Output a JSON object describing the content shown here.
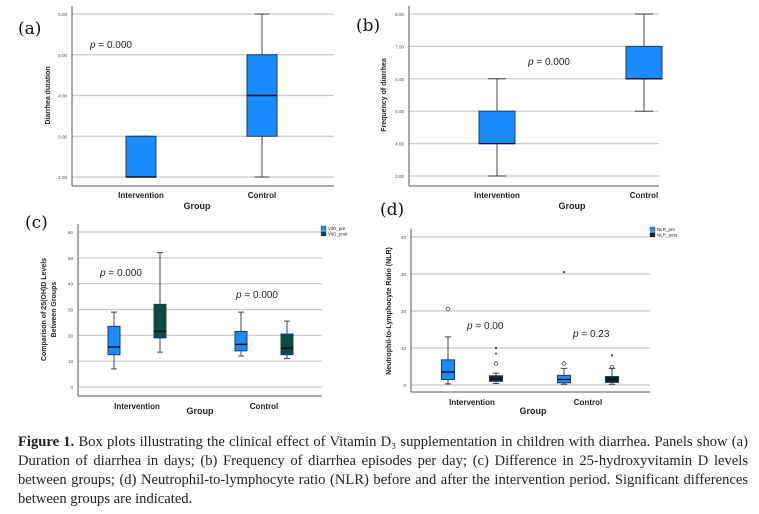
{
  "panels": [
    "(a)",
    "(b)",
    "(c)",
    "(d)"
  ],
  "caption": {
    "label": "Figure 1.",
    "text": "Box plots illustrating the clinical effect of Vitamin D₃ supplementation in children with diarrhea. Panels show (a) Duration of diarrhea in days; (b) Frequency of diarrhea episodes per day; (c) Difference in 25-hydroxyvitamin D levels between groups; (d) Neutrophil-to-lymphocyte ratio (NLR) before and after the intervention period. Significant differences between groups are indicated."
  },
  "chart_data": [
    {
      "type": "box",
      "panel": "(a)",
      "title": "",
      "xlabel": "Group",
      "ylabel": "Diarrhea duration",
      "categories": [
        "Intervention",
        "Control"
      ],
      "yticks": [
        "2.00",
        "3.00",
        "4.00",
        "5.00",
        "6.00"
      ],
      "ylim": [
        2,
        6
      ],
      "grid": true,
      "annotations": [
        {
          "text": "p = 0.000",
          "position": "top-left"
        }
      ],
      "series": [
        {
          "name": "",
          "color": "#1a8cff",
          "boxes": [
            {
              "min": 2,
              "q1": 2,
              "median": 2,
              "q3": 3,
              "max": 3
            },
            {
              "min": 2,
              "q1": 3,
              "median": 4,
              "q3": 5,
              "max": 6
            }
          ]
        }
      ]
    },
    {
      "type": "box",
      "panel": "(b)",
      "title": "",
      "xlabel": "Group",
      "ylabel": "Frequency of diarrhea",
      "categories": [
        "Intervention",
        "Control"
      ],
      "yticks": [
        "3.00",
        "4.00",
        "5.00",
        "6.00",
        "7.00",
        "8.00"
      ],
      "ylim": [
        3,
        8
      ],
      "grid": true,
      "annotations": [
        {
          "text": "p = 0.000",
          "position": "top-center"
        }
      ],
      "series": [
        {
          "name": "",
          "color": "#1a8cff",
          "boxes": [
            {
              "min": 3,
              "q1": 4,
              "median": 4,
              "q3": 5,
              "max": 6
            },
            {
              "min": 5,
              "q1": 6,
              "median": 6,
              "q3": 7,
              "max": 8
            }
          ]
        }
      ]
    },
    {
      "type": "box",
      "panel": "(c)",
      "title": "",
      "xlabel": "Group",
      "ylabel": "Comparison of 25(OH)D Levels Between Groups",
      "categories": [
        "Intervention",
        "Control"
      ],
      "yticks": [
        "0",
        "10",
        "20",
        "30",
        "40",
        "50",
        "60"
      ],
      "ylim": [
        0,
        60
      ],
      "grid": true,
      "legend": "top-right",
      "annotations": [
        {
          "text": "p = 0.000",
          "group": "Intervention"
        },
        {
          "text": "p = 0.000",
          "group": "Control"
        }
      ],
      "series": [
        {
          "name": "VitD_pre",
          "color": "#1a8cff",
          "boxes": [
            {
              "min": 7,
              "q1": 12.5,
              "median": 15.5,
              "q3": 23.5,
              "max": 29
            },
            {
              "min": 12,
              "q1": 14,
              "median": 16.5,
              "q3": 21.5,
              "max": 29
            }
          ]
        },
        {
          "name": "VitD_post",
          "color": "#0d4a42",
          "boxes": [
            {
              "min": 13.5,
              "q1": 19,
              "median": 21.5,
              "q3": 32,
              "max": 52
            },
            {
              "min": 11,
              "q1": 12.5,
              "median": 15,
              "q3": 20.5,
              "max": 25.5
            }
          ]
        }
      ]
    },
    {
      "type": "box",
      "panel": "(d)",
      "title": "",
      "xlabel": "Group",
      "ylabel": "Neutrophil-to-Lymphocyte Ratio (NLR)",
      "categories": [
        "Intervention",
        "Control"
      ],
      "yticks": [
        "0",
        "10",
        "20",
        "30",
        "40"
      ],
      "ylim": [
        0,
        40
      ],
      "grid": true,
      "legend": "top-right",
      "annotations": [
        {
          "text": "p = 0.00",
          "group": "Intervention"
        },
        {
          "text": "p = 0.23",
          "group": "Control"
        }
      ],
      "series": [
        {
          "name": "NLR_pre",
          "color": "#1a8cff",
          "boxes": [
            {
              "min": 0.3,
              "q1": 1.5,
              "median": 3.5,
              "q3": 6.8,
              "max": 13,
              "outliers": [
                20.5
              ],
              "extremes": []
            },
            {
              "min": 0.2,
              "q1": 0.6,
              "median": 1.5,
              "q3": 2.6,
              "max": 4.5,
              "outliers": [
                5.8
              ],
              "extremes": [
                30.5
              ]
            }
          ]
        },
        {
          "name": "NLR_post",
          "color": "#0d2a2a",
          "boxes": [
            {
              "min": 0.4,
              "q1": 1.0,
              "median": 1.8,
              "q3": 2.5,
              "max": 3.2,
              "outliers": [
                5.8
              ],
              "extremes": [
                8.5,
                10
              ]
            },
            {
              "min": 0.2,
              "q1": 0.7,
              "median": 1.5,
              "q3": 2.3,
              "max": 4.5,
              "outliers": [
                4.8
              ],
              "extremes": [
                8
              ]
            }
          ]
        }
      ]
    }
  ]
}
